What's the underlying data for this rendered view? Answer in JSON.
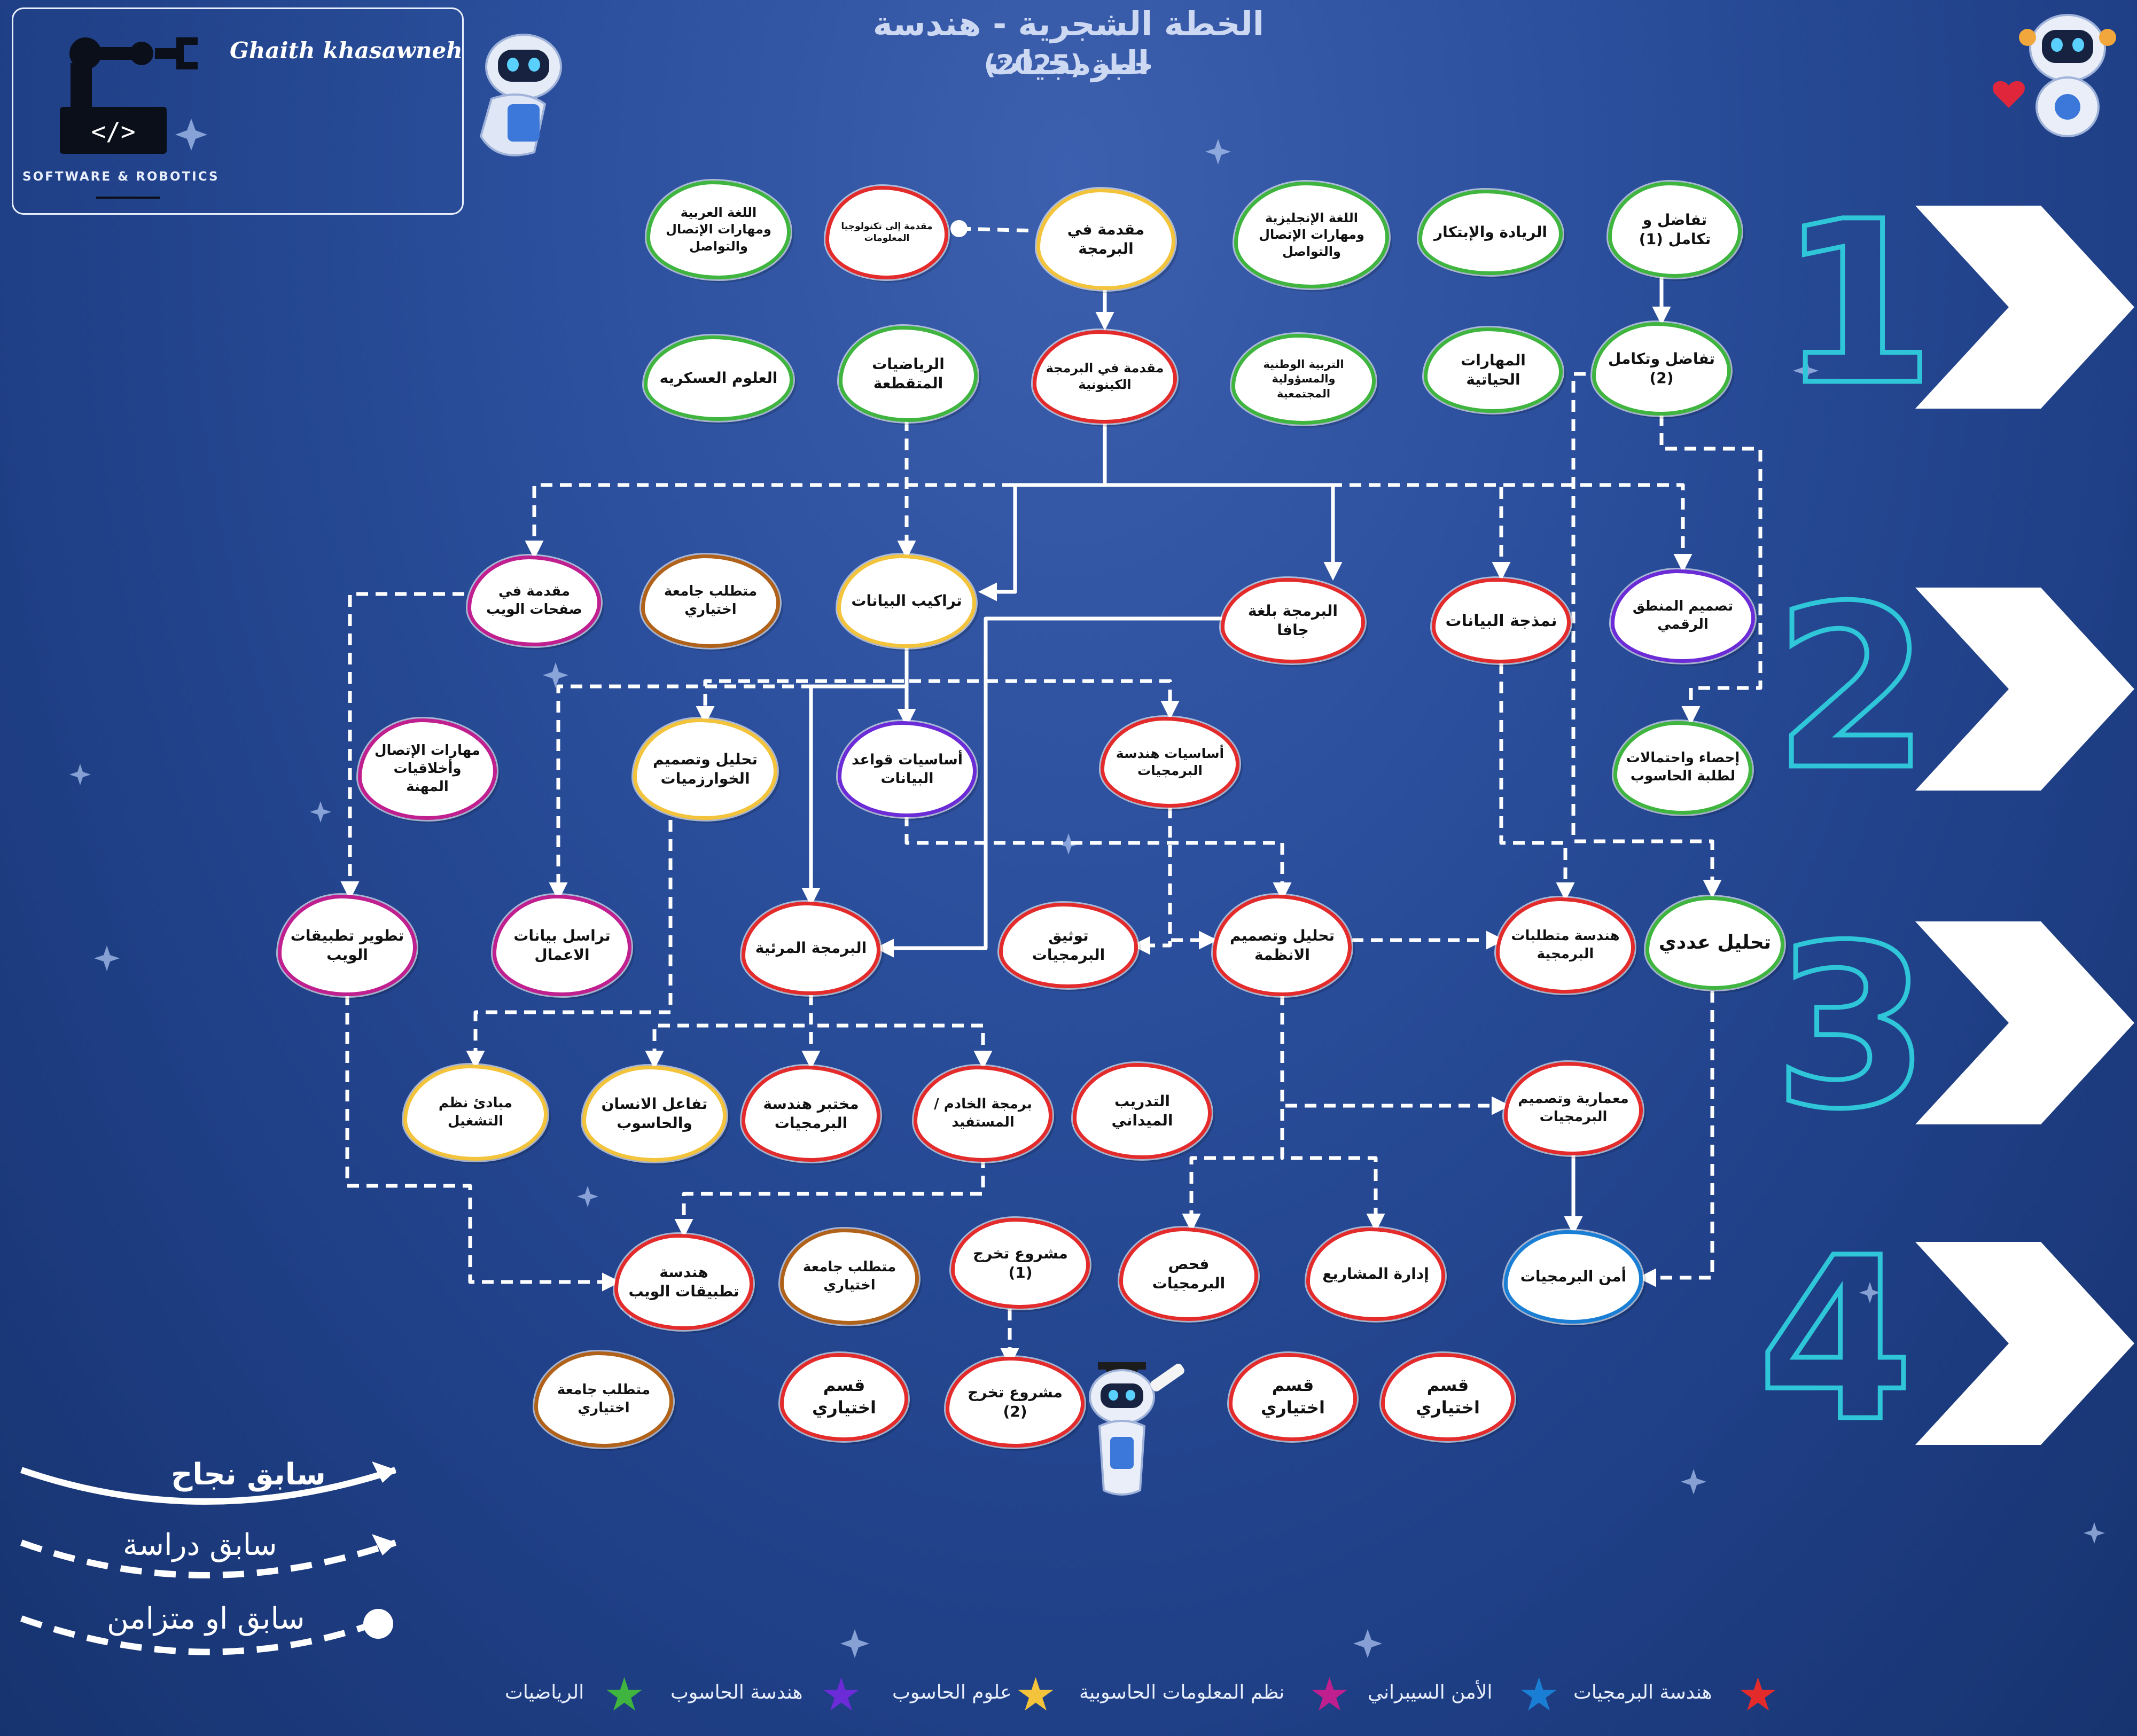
{
  "header": {
    "title": "الخطة الشجرية - هندسة البرمجيات",
    "subtitle": "خطة (2025)"
  },
  "logo": {
    "author": "Ghaith khasawneh",
    "brand": "SOFTWARE & ROBOTICS"
  },
  "years": [
    "1",
    "2",
    "3",
    "4"
  ],
  "colors": {
    "software_engineering": "#e32b2b",
    "cyber_security": "#1a7fd4",
    "information_systems": "#c01f8f",
    "computer_science": "#f3c33b",
    "computer_engineering": "#6b2bd6",
    "mathematics": "#3fb53f",
    "university": "#b0621a",
    "background": "#1f3f86",
    "year_numbers": "#2ec6d8"
  },
  "legend": {
    "success": "سابق نجاح",
    "study": "سابق دراسة",
    "concurrent": "سابق او متزامن"
  },
  "tracks": [
    {
      "label": "هندسة البرمجيات",
      "color": "#e32b2b"
    },
    {
      "label": "الأمن السيبراني",
      "color": "#1a7fd4"
    },
    {
      "label": "نظم المعلومات الحاسوبية",
      "color": "#c01f8f"
    },
    {
      "label": "علوم الحاسوب",
      "color": "#f3c33b"
    },
    {
      "label": "هندسة الحاسوب",
      "color": "#6b2bd6"
    },
    {
      "label": "الرياضيات",
      "color": "#3fb53f"
    }
  ],
  "courses": [
    {
      "id": "arabic",
      "label": "اللغة العربية ومهارات الإتصال والتواصل",
      "track": "mathematics"
    },
    {
      "id": "intro_it",
      "label": "مقدمة إلى تكنولوجيا المعلومات",
      "track": "software_engineering"
    },
    {
      "id": "intro_prog",
      "label": "مقدمة في البرمجة",
      "track": "computer_science"
    },
    {
      "id": "english",
      "label": "اللغة الإنجليزية ومهارات الإتصال والتواصل",
      "track": "mathematics"
    },
    {
      "id": "entrepreneurship",
      "label": "الريادة والإبتكار",
      "track": "mathematics"
    },
    {
      "id": "calc1",
      "label": "تفاضل و تكامل (1)",
      "track": "mathematics"
    },
    {
      "id": "military",
      "label": "العلوم العسكريه",
      "track": "mathematics"
    },
    {
      "id": "discrete",
      "label": "الرياضيات المتقطعة",
      "track": "mathematics"
    },
    {
      "id": "oop",
      "label": "مقدمة في البرمجة الكينونية",
      "track": "software_engineering"
    },
    {
      "id": "national",
      "label": "التربية الوطنية والمسؤولية المجتمعية",
      "track": "mathematics"
    },
    {
      "id": "life_skills",
      "label": "المهارات الحياتية",
      "track": "mathematics"
    },
    {
      "id": "calc2",
      "label": "تفاضل وتكامل (2)",
      "track": "mathematics"
    },
    {
      "id": "web_intro",
      "label": "مقدمة في صفحات الويب",
      "track": "information_systems"
    },
    {
      "id": "univ_elective_1",
      "label": "متطلب جامعة اختياري",
      "track": "university"
    },
    {
      "id": "data_structures",
      "label": "تراكيب البيانات",
      "track": "computer_science"
    },
    {
      "id": "java",
      "label": "البرمجة بلغة جافا",
      "track": "software_engineering"
    },
    {
      "id": "data_modeling",
      "label": "نمذجة البيانات",
      "track": "software_engineering"
    },
    {
      "id": "digital_logic",
      "label": "تصميم المنطق الرقمي",
      "track": "computer_engineering"
    },
    {
      "id": "ethics",
      "label": "مهارات الإتصال وأخلاقيات المهنة",
      "track": "information_systems"
    },
    {
      "id": "algorithms",
      "label": "تحليل وتصميم الخوارزميات",
      "track": "computer_science"
    },
    {
      "id": "db_fundamentals",
      "label": "أساسيات قواعد البيانات",
      "track": "computer_engineering"
    },
    {
      "id": "se_fundamentals",
      "label": "أساسيات هندسة البرمجيات",
      "track": "software_engineering"
    },
    {
      "id": "statistics",
      "label": "إحصاء واحتمالات لطلبة الحاسوب",
      "track": "mathematics"
    },
    {
      "id": "web_apps_dev",
      "label": "تطوير تطبيقات الويب",
      "track": "information_systems"
    },
    {
      "id": "bdc",
      "label": "تراسل بيانات الاعمال",
      "track": "information_systems"
    },
    {
      "id": "visual_prog",
      "label": "البرمجة المرئية",
      "track": "software_engineering"
    },
    {
      "id": "sw_documentation",
      "label": "توثيق البرمجيات",
      "track": "software_engineering"
    },
    {
      "id": "sad",
      "label": "تحليل وتصميم الانظمة",
      "track": "software_engineering"
    },
    {
      "id": "requirements",
      "label": "هندسة متطلبات البرمجية",
      "track": "software_engineering"
    },
    {
      "id": "numerical",
      "label": "تحليل عددي",
      "track": "mathematics"
    },
    {
      "id": "os",
      "label": "مبادئ نظم التشغيل",
      "track": "computer_science"
    },
    {
      "id": "hci",
      "label": "تفاعل الانسان والحاسوب",
      "track": "computer_science"
    },
    {
      "id": "se_lab",
      "label": "مختبر هندسة البرمجيات",
      "track": "software_engineering"
    },
    {
      "id": "client_server",
      "label": "برمجة الخادم / المستفيد",
      "track": "software_engineering"
    },
    {
      "id": "training",
      "label": "التدريب الميداني",
      "track": "software_engineering"
    },
    {
      "id": "architecture",
      "label": "معمارية وتصميم البرمجيات",
      "track": "software_engineering"
    },
    {
      "id": "web_eng",
      "label": "هندسة تطبيقات الويب",
      "track": "software_engineering"
    },
    {
      "id": "univ_elective_2",
      "label": "متطلب جامعة اختياري",
      "track": "university"
    },
    {
      "id": "grad_project_1",
      "label": "مشروع تخرج (1)",
      "track": "software_engineering"
    },
    {
      "id": "testing",
      "label": "فحص البرمجيات",
      "track": "software_engineering"
    },
    {
      "id": "project_mgmt",
      "label": "إدارة المشاريع",
      "track": "software_engineering"
    },
    {
      "id": "sw_security",
      "label": "أمن البرمجيات",
      "track": "cyber_security"
    },
    {
      "id": "univ_elective_3",
      "label": "متطلب جامعة اختياري",
      "track": "university"
    },
    {
      "id": "dept_elective_1",
      "label": "قسم اختياري",
      "track": "software_engineering"
    },
    {
      "id": "grad_project_2",
      "label": "مشروع تخرج (2)",
      "track": "software_engineering"
    },
    {
      "id": "dept_elective_2",
      "label": "قسم اختياري",
      "track": "software_engineering"
    },
    {
      "id": "dept_elective_3",
      "label": "قسم اختياري",
      "track": "software_engineering"
    }
  ],
  "links": [
    {
      "from": "intro_it",
      "to": "intro_prog",
      "kind": "concurrent"
    },
    {
      "from": "intro_prog",
      "to": "oop",
      "kind": "success"
    },
    {
      "from": "calc1",
      "to": "calc2",
      "kind": "success"
    },
    {
      "from": "oop",
      "to": "web_intro",
      "kind": "study"
    },
    {
      "from": "oop",
      "to": "data_structures",
      "kind": "success"
    },
    {
      "from": "oop",
      "to": "java",
      "kind": "success"
    },
    {
      "from": "oop",
      "to": "data_modeling",
      "kind": "study"
    },
    {
      "from": "oop",
      "to": "digital_logic",
      "kind": "study"
    },
    {
      "from": "discrete",
      "to": "data_structures",
      "kind": "study"
    },
    {
      "from": "calc2",
      "to": "statistics",
      "kind": "study"
    },
    {
      "from": "calc2",
      "to": "numerical",
      "kind": "study"
    },
    {
      "from": "web_intro",
      "to": "web_apps_dev",
      "kind": "study"
    },
    {
      "from": "data_structures",
      "to": "algorithms",
      "kind": "study"
    },
    {
      "from": "data_structures",
      "to": "db_fundamentals",
      "kind": "success"
    },
    {
      "from": "data_structures",
      "to": "se_fundamentals",
      "kind": "study"
    },
    {
      "from": "data_structures",
      "to": "bdc",
      "kind": "study"
    },
    {
      "from": "data_structures",
      "to": "visual_prog",
      "kind": "success"
    },
    {
      "from": "java",
      "to": "visual_prog",
      "kind": "success"
    },
    {
      "from": "db_fundamentals",
      "to": "sad",
      "kind": "study"
    },
    {
      "from": "data_modeling",
      "to": "requirements",
      "kind": "study"
    },
    {
      "from": "se_fundamentals",
      "to": "sw_documentation",
      "kind": "study"
    },
    {
      "from": "se_fundamentals",
      "to": "sad",
      "kind": "study"
    },
    {
      "from": "sad",
      "to": "requirements",
      "kind": "study"
    },
    {
      "from": "sad",
      "to": "architecture",
      "kind": "study"
    },
    {
      "from": "sad",
      "to": "testing",
      "kind": "study"
    },
    {
      "from": "sad",
      "to": "project_mgmt",
      "kind": "study"
    },
    {
      "from": "algorithms",
      "to": "os",
      "kind": "study"
    },
    {
      "from": "visual_prog",
      "to": "hci",
      "kind": "study"
    },
    {
      "from": "visual_prog",
      "to": "se_lab",
      "kind": "study"
    },
    {
      "from": "visual_prog",
      "to": "client_server",
      "kind": "study"
    },
    {
      "from": "client_server",
      "to": "web_eng",
      "kind": "study"
    },
    {
      "from": "web_apps_dev",
      "to": "web_eng",
      "kind": "study"
    },
    {
      "from": "architecture",
      "to": "sw_security",
      "kind": "success"
    },
    {
      "from": "numerical",
      "to": "sw_security",
      "kind": "study"
    },
    {
      "from": "grad_project_1",
      "to": "grad_project_2",
      "kind": "study"
    }
  ]
}
